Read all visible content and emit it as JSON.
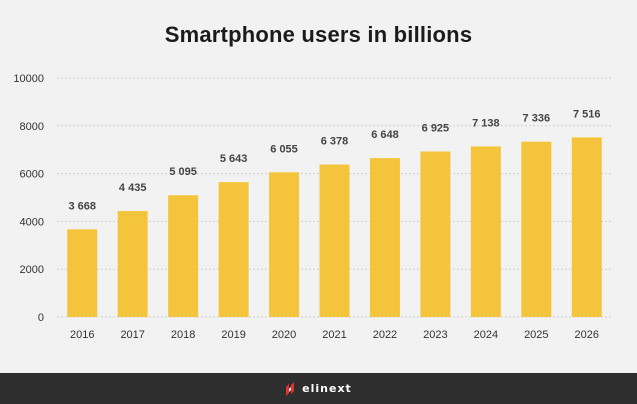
{
  "chart_data": {
    "type": "bar",
    "title": "Smartphone users in billions",
    "categories": [
      "2016",
      "2017",
      "2018",
      "2019",
      "2020",
      "2021",
      "2022",
      "2023",
      "2024",
      "2025",
      "2026"
    ],
    "values": [
      3668,
      4435,
      5095,
      5643,
      6055,
      6378,
      6648,
      6925,
      7138,
      7336,
      7516
    ],
    "value_labels": [
      "3 668",
      "4 435",
      "5 095",
      "5 643",
      "6 055",
      "6 378",
      "6 648",
      "6 925",
      "7 138",
      "7 336",
      "7 516"
    ],
    "yticks": [
      0,
      2000,
      4000,
      6000,
      8000,
      10000
    ],
    "ylim": [
      0,
      10000
    ],
    "grid": true,
    "bar_color": "#f4c53c",
    "legend": "none"
  },
  "footer": {
    "brand": "elinext",
    "logo_color": "#e5322d"
  }
}
